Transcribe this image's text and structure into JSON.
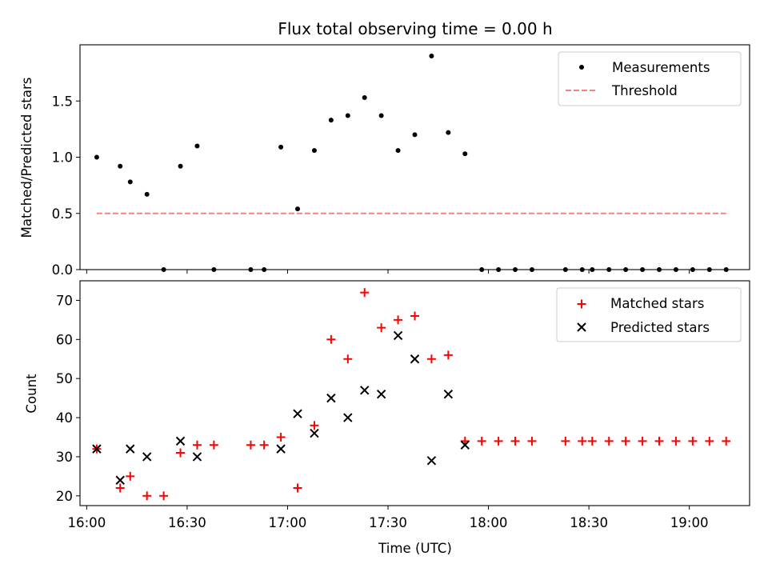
{
  "chart_data": [
    {
      "type": "scatter",
      "title": "Flux total observing time = 0.00 h",
      "xlabel": "",
      "ylabel": "Matched/Predicted stars",
      "xlim": [
        "15:58",
        "19:18"
      ],
      "ylim": [
        0,
        2.0
      ],
      "yticks": [
        0.0,
        0.5,
        1.0,
        1.5
      ],
      "grid": false,
      "legend": "top-right",
      "series": [
        {
          "name": "Measurements",
          "marker": "dot",
          "color": "#000000",
          "points": [
            [
              "16:03",
              1.0
            ],
            [
              "16:10",
              0.92
            ],
            [
              "16:13",
              0.78
            ],
            [
              "16:18",
              0.67
            ],
            [
              "16:23",
              0.0
            ],
            [
              "16:28",
              0.92
            ],
            [
              "16:33",
              1.1
            ],
            [
              "16:38",
              0.0
            ],
            [
              "16:49",
              0.0
            ],
            [
              "16:53",
              0.0
            ],
            [
              "16:58",
              1.09
            ],
            [
              "17:03",
              0.54
            ],
            [
              "17:08",
              1.06
            ],
            [
              "17:13",
              1.33
            ],
            [
              "17:18",
              1.37
            ],
            [
              "17:23",
              1.53
            ],
            [
              "17:28",
              1.37
            ],
            [
              "17:33",
              1.06
            ],
            [
              "17:38",
              1.2
            ],
            [
              "17:43",
              1.9
            ],
            [
              "17:48",
              1.22
            ],
            [
              "17:53",
              1.03
            ],
            [
              "17:58",
              0.0
            ],
            [
              "18:03",
              0.0
            ],
            [
              "18:08",
              0.0
            ],
            [
              "18:13",
              0.0
            ],
            [
              "18:23",
              0.0
            ],
            [
              "18:28",
              0.0
            ],
            [
              "18:31",
              0.0
            ],
            [
              "18:36",
              0.0
            ],
            [
              "18:41",
              0.0
            ],
            [
              "18:46",
              0.0
            ],
            [
              "18:51",
              0.0
            ],
            [
              "18:56",
              0.0
            ],
            [
              "19:01",
              0.0
            ],
            [
              "19:06",
              0.0
            ],
            [
              "19:11",
              0.0
            ]
          ]
        },
        {
          "name": "Threshold",
          "line": "dashed",
          "color": "#ff7f7f",
          "points": [
            [
              "16:03",
              0.5
            ],
            [
              "19:11",
              0.5
            ]
          ]
        }
      ]
    },
    {
      "type": "scatter",
      "title": "",
      "xlabel": "Time (UTC)",
      "ylabel": "Count",
      "xlim": [
        "15:58",
        "19:18"
      ],
      "ylim": [
        17.5,
        75
      ],
      "yticks": [
        20,
        30,
        40,
        50,
        60,
        70
      ],
      "xticks": [
        "16:00",
        "16:30",
        "17:00",
        "17:30",
        "18:00",
        "18:30",
        "19:00"
      ],
      "grid": false,
      "legend": "top-right",
      "series": [
        {
          "name": "Matched stars",
          "marker": "plus",
          "color": "#ff0000",
          "points": [
            [
              "16:03",
              32
            ],
            [
              "16:10",
              22
            ],
            [
              "16:13",
              25
            ],
            [
              "16:18",
              20
            ],
            [
              "16:23",
              20
            ],
            [
              "16:28",
              31
            ],
            [
              "16:33",
              33
            ],
            [
              "16:38",
              33
            ],
            [
              "16:49",
              33
            ],
            [
              "16:53",
              33
            ],
            [
              "16:58",
              35
            ],
            [
              "17:03",
              22
            ],
            [
              "17:08",
              38
            ],
            [
              "17:13",
              60
            ],
            [
              "17:18",
              55
            ],
            [
              "17:23",
              72
            ],
            [
              "17:28",
              63
            ],
            [
              "17:33",
              65
            ],
            [
              "17:38",
              66
            ],
            [
              "17:43",
              55
            ],
            [
              "17:48",
              56
            ],
            [
              "17:53",
              34
            ],
            [
              "17:58",
              34
            ],
            [
              "18:03",
              34
            ],
            [
              "18:08",
              34
            ],
            [
              "18:13",
              34
            ],
            [
              "18:23",
              34
            ],
            [
              "18:28",
              34
            ],
            [
              "18:31",
              34
            ],
            [
              "18:36",
              34
            ],
            [
              "18:41",
              34
            ],
            [
              "18:46",
              34
            ],
            [
              "18:51",
              34
            ],
            [
              "18:56",
              34
            ],
            [
              "19:01",
              34
            ],
            [
              "19:06",
              34
            ],
            [
              "19:11",
              34
            ]
          ]
        },
        {
          "name": "Predicted stars",
          "marker": "x",
          "color": "#000000",
          "points": [
            [
              "16:03",
              32
            ],
            [
              "16:10",
              24
            ],
            [
              "16:13",
              32
            ],
            [
              "16:18",
              30
            ],
            [
              "16:28",
              34
            ],
            [
              "16:33",
              30
            ],
            [
              "16:58",
              32
            ],
            [
              "17:03",
              41
            ],
            [
              "17:08",
              36
            ],
            [
              "17:13",
              45
            ],
            [
              "17:18",
              40
            ],
            [
              "17:23",
              47
            ],
            [
              "17:28",
              46
            ],
            [
              "17:33",
              61
            ],
            [
              "17:38",
              55
            ],
            [
              "17:43",
              29
            ],
            [
              "17:48",
              46
            ],
            [
              "17:53",
              33
            ]
          ]
        }
      ]
    }
  ]
}
